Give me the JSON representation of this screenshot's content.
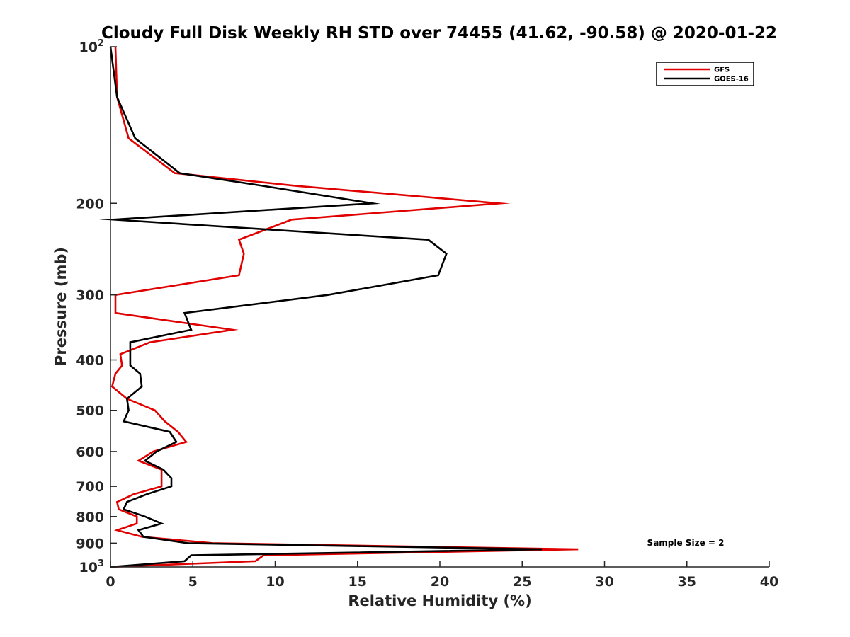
{
  "chart_data": {
    "type": "line",
    "title": "Cloudy Full Disk Weekly RH STD over 74455 (41.62, -90.58) @ 2020-01-22",
    "xlabel": "Relative Humidity (%)",
    "ylabel": "Pressure (mb)",
    "xlim": [
      0,
      40
    ],
    "ylim": [
      100,
      1000
    ],
    "y_scale": "log",
    "y_reversed": true,
    "x_ticks": [
      "0",
      "5",
      "10",
      "15",
      "20",
      "25",
      "30",
      "35",
      "40"
    ],
    "y_ticks": [
      {
        "value": 100,
        "base": "10",
        "exp": "2"
      },
      {
        "value": 200,
        "label": "200"
      },
      {
        "value": 300,
        "label": "300"
      },
      {
        "value": 400,
        "label": "400"
      },
      {
        "value": 500,
        "label": "500"
      },
      {
        "value": 600,
        "label": "600"
      },
      {
        "value": 700,
        "label": "700"
      },
      {
        "value": 800,
        "label": "800"
      },
      {
        "value": 900,
        "label": "900"
      },
      {
        "value": 1000,
        "base": "10",
        "exp": "3"
      }
    ],
    "grid": false,
    "legend_position": "top-right",
    "annotation": "Sample Size = 2",
    "series": [
      {
        "name": "GFS",
        "color": "#e00000",
        "points": [
          [
            0.3,
            100
          ],
          [
            0.4,
            125
          ],
          [
            1.1,
            150
          ],
          [
            3.9,
            175
          ],
          [
            11.2,
            185
          ],
          [
            23.6,
            200
          ],
          [
            11.0,
            215
          ],
          [
            7.8,
            235
          ],
          [
            8.1,
            250
          ],
          [
            7.8,
            275
          ],
          [
            0.3,
            300
          ],
          [
            0.3,
            325
          ],
          [
            7.4,
            350
          ],
          [
            2.4,
            370
          ],
          [
            0.6,
            390
          ],
          [
            0.7,
            410
          ],
          [
            0.3,
            425
          ],
          [
            0.1,
            450
          ],
          [
            1.0,
            475
          ],
          [
            2.7,
            500
          ],
          [
            3.3,
            525
          ],
          [
            4.1,
            550
          ],
          [
            4.6,
            575
          ],
          [
            2.6,
            600
          ],
          [
            1.7,
            625
          ],
          [
            3.1,
            650
          ],
          [
            3.1,
            675
          ],
          [
            3.1,
            700
          ],
          [
            1.4,
            725
          ],
          [
            0.4,
            750
          ],
          [
            0.5,
            775
          ],
          [
            1.6,
            800
          ],
          [
            1.6,
            825
          ],
          [
            0.4,
            850
          ],
          [
            1.9,
            875
          ],
          [
            6.2,
            900
          ],
          [
            28.4,
            925
          ],
          [
            9.3,
            950
          ],
          [
            8.8,
            975
          ],
          [
            0.0,
            1000
          ]
        ]
      },
      {
        "name": "GOES-16",
        "color": "#000000",
        "points": [
          [
            0.0,
            100
          ],
          [
            0.4,
            125
          ],
          [
            1.5,
            150
          ],
          [
            4.2,
            175
          ],
          [
            9.2,
            185
          ],
          [
            15.9,
            200
          ],
          [
            0.2,
            215
          ],
          [
            19.3,
            235
          ],
          [
            20.4,
            250
          ],
          [
            19.9,
            275
          ],
          [
            13.2,
            300
          ],
          [
            4.5,
            325
          ],
          [
            4.9,
            350
          ],
          [
            1.2,
            370
          ],
          [
            1.2,
            390
          ],
          [
            1.2,
            410
          ],
          [
            1.8,
            425
          ],
          [
            1.9,
            450
          ],
          [
            1.0,
            475
          ],
          [
            1.1,
            500
          ],
          [
            0.8,
            525
          ],
          [
            3.6,
            550
          ],
          [
            4.0,
            575
          ],
          [
            2.8,
            600
          ],
          [
            2.1,
            625
          ],
          [
            3.2,
            650
          ],
          [
            3.7,
            675
          ],
          [
            3.7,
            700
          ],
          [
            2.2,
            725
          ],
          [
            1.0,
            750
          ],
          [
            0.8,
            775
          ],
          [
            2.1,
            800
          ],
          [
            3.1,
            825
          ],
          [
            1.7,
            850
          ],
          [
            2.0,
            875
          ],
          [
            4.7,
            900
          ],
          [
            26.2,
            925
          ],
          [
            4.9,
            950
          ],
          [
            4.5,
            975
          ],
          [
            0.0,
            1000
          ]
        ]
      }
    ]
  }
}
